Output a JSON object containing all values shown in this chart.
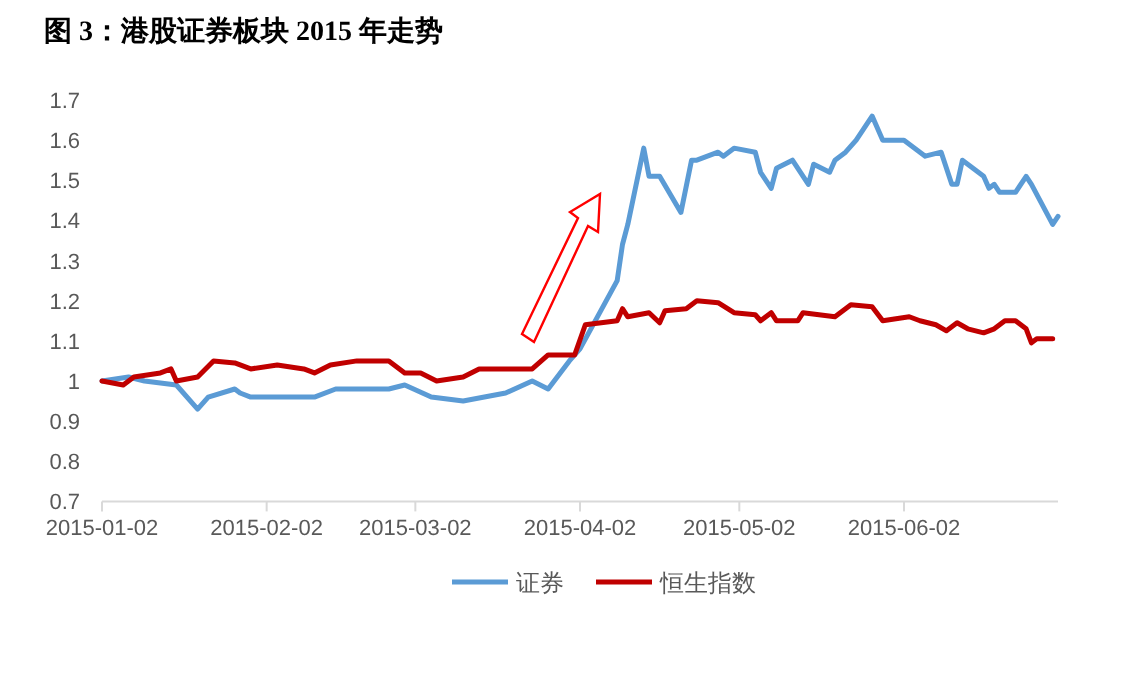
{
  "chart_data": {
    "type": "line",
    "title": "图 3：港股证券板块 2015 年走势",
    "xlim": [
      "2015-01-02",
      "2015-07-01"
    ],
    "xticks": [
      "2015-01-02",
      "2015-02-02",
      "2015-03-02",
      "2015-04-02",
      "2015-05-02",
      "2015-06-02"
    ],
    "ylim": [
      0.7,
      1.7
    ],
    "yticks": [
      0.7,
      0.8,
      0.9,
      1,
      1.1,
      1.2,
      1.3,
      1.4,
      1.5,
      1.6,
      1.7
    ],
    "grid": false,
    "legend": "bottom",
    "marker": "none",
    "line_style": "solid",
    "series": [
      {
        "name": "证券",
        "color": "#5b9bd5",
        "x": [
          "2015-01-02",
          "2015-01-07",
          "2015-01-10",
          "2015-01-16",
          "2015-01-20",
          "2015-01-22",
          "2015-01-27",
          "2015-01-28",
          "2015-01-30",
          "2015-02-02",
          "2015-02-04",
          "2015-02-11",
          "2015-02-15",
          "2015-02-25",
          "2015-02-28",
          "2015-03-05",
          "2015-03-11",
          "2015-03-19",
          "2015-03-24",
          "2015-03-27",
          "2015-03-31",
          "2015-04-02",
          "2015-04-09",
          "2015-04-10",
          "2015-04-11",
          "2015-04-14",
          "2015-04-15",
          "2015-04-17",
          "2015-04-21",
          "2015-04-23",
          "2015-04-24",
          "2015-04-28",
          "2015-04-29",
          "2015-05-01",
          "2015-05-05",
          "2015-05-06",
          "2015-05-08",
          "2015-05-09",
          "2015-05-12",
          "2015-05-15",
          "2015-05-16",
          "2015-05-19",
          "2015-05-20",
          "2015-05-22",
          "2015-05-24",
          "2015-05-27",
          "2015-05-29",
          "2015-06-02",
          "2015-06-04",
          "2015-06-06",
          "2015-06-09",
          "2015-06-11",
          "2015-06-12",
          "2015-06-13",
          "2015-06-17",
          "2015-06-18",
          "2015-06-19",
          "2015-06-20",
          "2015-06-23",
          "2015-06-25",
          "2015-06-26",
          "2015-06-30",
          "2015-07-01"
        ],
        "values": [
          1.0,
          1.01,
          1.0,
          0.99,
          0.93,
          0.96,
          0.98,
          0.97,
          0.96,
          0.96,
          0.96,
          0.96,
          0.98,
          0.98,
          0.99,
          0.96,
          0.95,
          0.97,
          1.0,
          0.98,
          1.05,
          1.08,
          1.25,
          1.34,
          1.39,
          1.58,
          1.51,
          1.51,
          1.42,
          1.55,
          1.55,
          1.57,
          1.56,
          1.58,
          1.57,
          1.52,
          1.48,
          1.53,
          1.55,
          1.49,
          1.54,
          1.52,
          1.55,
          1.57,
          1.6,
          1.66,
          1.6,
          1.6,
          1.58,
          1.56,
          1.57,
          1.49,
          1.49,
          1.55,
          1.51,
          1.48,
          1.49,
          1.47,
          1.47,
          1.51,
          1.49,
          1.39,
          1.41
        ]
      },
      {
        "name": "恒生指数",
        "color": "#c00000",
        "x": [
          "2015-01-02",
          "2015-01-06",
          "2015-01-08",
          "2015-01-13",
          "2015-01-15",
          "2015-01-16",
          "2015-01-20",
          "2015-01-23",
          "2015-01-27",
          "2015-01-30",
          "2015-02-04",
          "2015-02-09",
          "2015-02-11",
          "2015-02-14",
          "2015-02-19",
          "2015-02-25",
          "2015-02-28",
          "2015-03-03",
          "2015-03-06",
          "2015-03-11",
          "2015-03-14",
          "2015-03-17",
          "2015-03-24",
          "2015-03-27",
          "2015-04-01",
          "2015-04-03",
          "2015-04-09",
          "2015-04-10",
          "2015-04-11",
          "2015-04-15",
          "2015-04-17",
          "2015-04-18",
          "2015-04-22",
          "2015-04-24",
          "2015-04-28",
          "2015-05-01",
          "2015-05-05",
          "2015-05-06",
          "2015-05-08",
          "2015-05-09",
          "2015-05-13",
          "2015-05-14",
          "2015-05-20",
          "2015-05-23",
          "2015-05-27",
          "2015-05-29",
          "2015-06-03",
          "2015-06-05",
          "2015-06-08",
          "2015-06-10",
          "2015-06-12",
          "2015-06-14",
          "2015-06-17",
          "2015-06-19",
          "2015-06-21",
          "2015-06-23",
          "2015-06-25",
          "2015-06-26",
          "2015-06-27",
          "2015-06-30"
        ],
        "values": [
          1.0,
          0.99,
          1.01,
          1.02,
          1.03,
          1.0,
          1.01,
          1.05,
          1.045,
          1.03,
          1.04,
          1.03,
          1.02,
          1.04,
          1.05,
          1.05,
          1.02,
          1.02,
          1.0,
          1.01,
          1.03,
          1.03,
          1.03,
          1.065,
          1.065,
          1.14,
          1.15,
          1.18,
          1.16,
          1.17,
          1.145,
          1.175,
          1.18,
          1.2,
          1.195,
          1.17,
          1.165,
          1.15,
          1.17,
          1.15,
          1.15,
          1.17,
          1.16,
          1.19,
          1.185,
          1.15,
          1.16,
          1.15,
          1.14,
          1.125,
          1.145,
          1.13,
          1.12,
          1.13,
          1.15,
          1.15,
          1.13,
          1.095,
          1.105,
          1.105
        ]
      }
    ]
  }
}
